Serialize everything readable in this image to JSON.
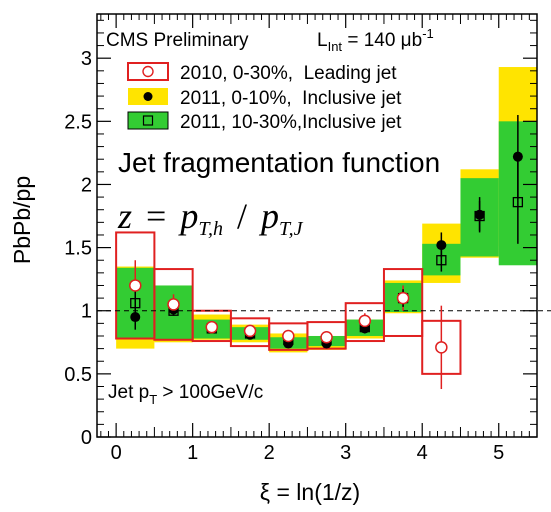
{
  "chart_data": {
    "type": "histogram-ratio",
    "experiment": "CMS Preliminary",
    "luminosity": {
      "prefix": "L",
      "subscript": "Int",
      "value": " = 140 μb",
      "superscript": "-1"
    },
    "xlabel": "ξ = ln(1/z)",
    "ylabel": "PbPb/pp",
    "xlim": [
      -0.25,
      5.5
    ],
    "ylim": [
      0,
      3.35
    ],
    "x_ticks": [
      "0",
      "1",
      "2",
      "3",
      "4",
      "5"
    ],
    "y_ticks": [
      "0",
      "0.5",
      "1",
      "1.5",
      "2",
      "2.5",
      "3"
    ],
    "reference_line": 1,
    "annotation_title": "Jet fragmentation function",
    "formula": {
      "lhs": "z",
      "eq": "=",
      "num": "p",
      "num_sub": "T,h",
      "slash": "/",
      "den": "p",
      "den_sub": "T,J"
    },
    "cut_label": {
      "prefix": "Jet p",
      "sub": "T",
      "rest": " > 100GeV/c"
    },
    "bin_edges": [
      0,
      0.5,
      1,
      1.5,
      2,
      2.5,
      3,
      3.5,
      4,
      4.5,
      5,
      5.5
    ],
    "bin_centers": [
      0.25,
      0.75,
      1.25,
      1.75,
      2.25,
      2.75,
      3.25,
      3.75,
      4.25,
      4.75,
      5.25
    ],
    "series": [
      {
        "name": "2010, 0-30%,  Leading jet",
        "marker": "open-circle",
        "color": "#e02020",
        "values": [
          1.2,
          1.05,
          0.87,
          0.84,
          0.8,
          0.79,
          0.92,
          1.1,
          0.71
        ],
        "stat_err": [
          0.2,
          0.08,
          0.04,
          0.04,
          0.04,
          0.04,
          0.06,
          0.1,
          0.33
        ],
        "sys_low": [
          0.78,
          0.77,
          0.76,
          0.72,
          0.69,
          0.7,
          0.76,
          0.8,
          0.5
        ],
        "sys_high": [
          1.62,
          1.33,
          1.0,
          0.94,
          0.9,
          0.91,
          1.06,
          1.33,
          0.92
        ]
      },
      {
        "name": "2011, 0-10%,  Inclusive jet",
        "marker": "filled-circle",
        "color": "#ffe400",
        "values": [
          0.95,
          1.01,
          0.87,
          0.81,
          0.74,
          0.74,
          0.86,
          1.1,
          1.52,
          1.76,
          2.22
        ],
        "stat_err": [
          0.1,
          0.04,
          0.03,
          0.03,
          0.03,
          0.03,
          0.04,
          0.07,
          0.1,
          0.14,
          0.33
        ],
        "sys_low": [
          0.7,
          0.75,
          0.77,
          0.75,
          0.67,
          0.69,
          0.78,
          0.98,
          1.22,
          1.42,
          1.51
        ],
        "sys_high": [
          1.35,
          1.2,
          0.97,
          0.89,
          0.82,
          0.8,
          0.93,
          1.24,
          1.69,
          2.12,
          2.93
        ]
      },
      {
        "name": "2011, 10-30%,Inclusive jet",
        "marker": "open-square",
        "color": "#33cc33",
        "values": [
          1.06,
          1.0,
          0.86,
          0.82,
          0.77,
          0.77,
          0.87,
          1.1,
          1.4,
          1.75,
          1.86
        ],
        "stat_err": [
          0.13,
          0.04,
          0.03,
          0.03,
          0.03,
          0.03,
          0.04,
          0.06,
          0.09,
          0.12,
          0.33
        ],
        "sys_low": [
          0.78,
          0.77,
          0.78,
          0.77,
          0.7,
          0.72,
          0.8,
          0.99,
          1.28,
          1.43,
          1.36
        ],
        "sys_high": [
          1.34,
          1.2,
          0.93,
          0.87,
          0.79,
          0.8,
          0.93,
          1.22,
          1.53,
          2.05,
          2.5
        ]
      }
    ],
    "grid": false,
    "legend_position": "top-left"
  }
}
